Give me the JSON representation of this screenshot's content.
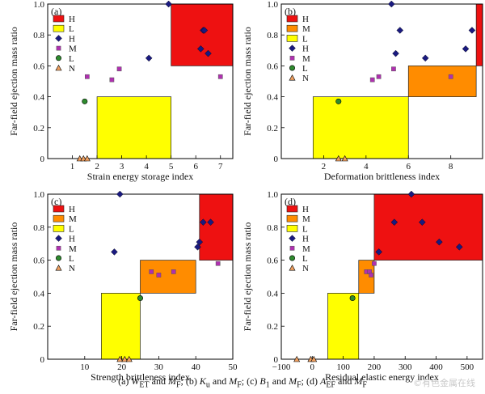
{
  "caption": "(a) Wₑₜ and Mƒ; (b) Kᵤ and Mƒ; (c) B₁ and Mƒ; (d) Aₑƒ and Mƒ",
  "caption_parts": {
    "a_prefix": "(a) ",
    "a_var": "W",
    "a_sub": "ET",
    "join1": " and ",
    "mf": "M",
    "mf_sub": "F",
    "b_prefix": "; (b) ",
    "b_var": "K",
    "b_sub": "u",
    "c_prefix": "; (c) ",
    "c_var": "B",
    "c_sub": "1",
    "d_prefix": "; (d) ",
    "d_var": "A",
    "d_sub": "EF"
  },
  "watermark": "©有色金属在线",
  "colors": {
    "high": "#ee1111",
    "medium": "#ff8c00",
    "low": "#ffff00",
    "diamond": "#1a1a80",
    "square": "#b030b0",
    "circle": "#2e8b2e",
    "triangle": "#f0a060"
  },
  "chart_data": [
    {
      "type": "scatter",
      "panel": "(a)",
      "xlabel": "Strain energy storage index",
      "ylabel": "Far-field ejection mass ratio",
      "xlim": [
        0,
        7.5
      ],
      "ylim": [
        0,
        1.0
      ],
      "xticks": [
        1,
        2,
        3,
        4,
        5,
        6,
        7
      ],
      "yticks": [
        0,
        0.2,
        0.4,
        0.6,
        0.8,
        1.0
      ],
      "legend": [
        {
          "label": "H",
          "kind": "rect-high"
        },
        {
          "label": "L",
          "kind": "rect-low"
        },
        {
          "label": "H",
          "kind": "diamond"
        },
        {
          "label": "M",
          "kind": "square"
        },
        {
          "label": "L",
          "kind": "circle"
        },
        {
          "label": "N",
          "kind": "triangle"
        }
      ],
      "regions": [
        {
          "level": "high",
          "x0": 5.0,
          "x1": 7.5,
          "y0": 0.6,
          "y1": 1.0
        },
        {
          "level": "low",
          "x0": 2.0,
          "x1": 5.0,
          "y0": 0.0,
          "y1": 0.4
        }
      ],
      "series": [
        {
          "name": "H",
          "marker": "diamond",
          "points": [
            [
              4.9,
              1.0
            ],
            [
              6.3,
              0.83
            ],
            [
              6.35,
              0.83
            ],
            [
              6.2,
              0.71
            ],
            [
              6.5,
              0.68
            ],
            [
              4.1,
              0.65
            ]
          ]
        },
        {
          "name": "M",
          "marker": "square",
          "points": [
            [
              1.6,
              0.53
            ],
            [
              2.6,
              0.51
            ],
            [
              2.9,
              0.58
            ],
            [
              7.0,
              0.53
            ]
          ]
        },
        {
          "name": "L",
          "marker": "circle",
          "points": [
            [
              1.5,
              0.37
            ]
          ]
        },
        {
          "name": "N",
          "marker": "triangle",
          "points": [
            [
              1.3,
              0.0
            ],
            [
              1.45,
              0.0
            ],
            [
              1.6,
              0.0
            ]
          ]
        }
      ]
    },
    {
      "type": "scatter",
      "panel": "(b)",
      "xlabel": "Deformation brittleness index",
      "ylabel": "Far-field ejection mass ratio",
      "xlim": [
        0,
        9.5
      ],
      "ylim": [
        0,
        1.0
      ],
      "xticks": [
        2,
        4,
        6,
        8
      ],
      "yticks": [
        0,
        0.2,
        0.4,
        0.6,
        0.8,
        1.0
      ],
      "legend": [
        {
          "label": "H",
          "kind": "rect-high"
        },
        {
          "label": "M",
          "kind": "rect-medium"
        },
        {
          "label": "L",
          "kind": "rect-low"
        },
        {
          "label": "H",
          "kind": "diamond"
        },
        {
          "label": "M",
          "kind": "square"
        },
        {
          "label": "L",
          "kind": "circle"
        },
        {
          "label": "N",
          "kind": "triangle"
        }
      ],
      "regions": [
        {
          "level": "high",
          "x0": 9.2,
          "x1": 9.5,
          "y0": 0.6,
          "y1": 1.0
        },
        {
          "level": "medium",
          "x0": 6.0,
          "x1": 9.2,
          "y0": 0.4,
          "y1": 0.6
        },
        {
          "level": "low",
          "x0": 1.5,
          "x1": 6.0,
          "y0": 0.0,
          "y1": 0.4
        }
      ],
      "series": [
        {
          "name": "H",
          "marker": "diamond",
          "points": [
            [
              5.2,
              1.0
            ],
            [
              5.6,
              0.83
            ],
            [
              9.0,
              0.83
            ],
            [
              8.7,
              0.71
            ],
            [
              5.4,
              0.68
            ],
            [
              6.8,
              0.65
            ]
          ]
        },
        {
          "name": "M",
          "marker": "square",
          "points": [
            [
              4.3,
              0.51
            ],
            [
              4.6,
              0.53
            ],
            [
              5.3,
              0.58
            ],
            [
              8.0,
              0.53
            ]
          ]
        },
        {
          "name": "L",
          "marker": "circle",
          "points": [
            [
              2.7,
              0.37
            ]
          ]
        },
        {
          "name": "N",
          "marker": "triangle",
          "points": [
            [
              2.7,
              0.0
            ],
            [
              3.0,
              0.0
            ]
          ]
        }
      ]
    },
    {
      "type": "scatter",
      "panel": "(c)",
      "xlabel": "Strength brittleness index",
      "ylabel": "Far-field ejection mass ratio",
      "xlim": [
        0,
        50
      ],
      "ylim": [
        0,
        1.0
      ],
      "xticks": [
        10,
        20,
        30,
        40,
        50
      ],
      "yticks": [
        0,
        0.2,
        0.4,
        0.6,
        0.8,
        1.0
      ],
      "legend": [
        {
          "label": "H",
          "kind": "rect-high"
        },
        {
          "label": "M",
          "kind": "rect-medium"
        },
        {
          "label": "L",
          "kind": "rect-low"
        },
        {
          "label": "H",
          "kind": "diamond"
        },
        {
          "label": "M",
          "kind": "square"
        },
        {
          "label": "L",
          "kind": "circle"
        },
        {
          "label": "N",
          "kind": "triangle"
        }
      ],
      "regions": [
        {
          "level": "high",
          "x0": 41,
          "x1": 50,
          "y0": 0.6,
          "y1": 1.0
        },
        {
          "level": "medium",
          "x0": 25,
          "x1": 40,
          "y0": 0.4,
          "y1": 0.6
        },
        {
          "level": "low",
          "x0": 14.5,
          "x1": 25,
          "y0": 0.0,
          "y1": 0.4
        }
      ],
      "series": [
        {
          "name": "H",
          "marker": "diamond",
          "points": [
            [
              19.5,
              1.0
            ],
            [
              42,
              0.83
            ],
            [
              44,
              0.83
            ],
            [
              41,
              0.71
            ],
            [
              40.5,
              0.68
            ],
            [
              18,
              0.65
            ]
          ]
        },
        {
          "name": "M",
          "marker": "square",
          "points": [
            [
              28,
              0.53
            ],
            [
              30,
              0.51
            ],
            [
              34,
              0.53
            ],
            [
              46,
              0.58
            ]
          ]
        },
        {
          "name": "L",
          "marker": "circle",
          "points": [
            [
              25,
              0.37
            ]
          ]
        },
        {
          "name": "N",
          "marker": "triangle",
          "points": [
            [
              19.5,
              0.0
            ],
            [
              20.8,
              0.0
            ],
            [
              22,
              0.0
            ]
          ]
        }
      ]
    },
    {
      "type": "scatter",
      "panel": "(d)",
      "xlabel": "Residual elastic energy index",
      "ylabel": "Far-field ejection mass ratio",
      "xlim": [
        -100,
        550
      ],
      "ylim": [
        0,
        1.0
      ],
      "xticks": [
        -100,
        0,
        100,
        200,
        300,
        400,
        500
      ],
      "yticks": [
        0,
        0.2,
        0.4,
        0.6,
        0.8,
        1.0
      ],
      "legend": [
        {
          "label": "H",
          "kind": "rect-high"
        },
        {
          "label": "M",
          "kind": "rect-medium"
        },
        {
          "label": "L",
          "kind": "rect-low"
        },
        {
          "label": "H",
          "kind": "diamond"
        },
        {
          "label": "M",
          "kind": "square"
        },
        {
          "label": "L",
          "kind": "circle"
        },
        {
          "label": "N",
          "kind": "triangle"
        }
      ],
      "regions": [
        {
          "level": "high",
          "x0": 200,
          "x1": 550,
          "y0": 0.6,
          "y1": 1.0
        },
        {
          "level": "medium",
          "x0": 150,
          "x1": 200,
          "y0": 0.4,
          "y1": 0.6
        },
        {
          "level": "low",
          "x0": 50,
          "x1": 150,
          "y0": 0.0,
          "y1": 0.4
        }
      ],
      "series": [
        {
          "name": "H",
          "marker": "diamond",
          "points": [
            [
              320,
              1.0
            ],
            [
              265,
              0.83
            ],
            [
              355,
              0.83
            ],
            [
              410,
              0.71
            ],
            [
              475,
              0.68
            ],
            [
              215,
              0.65
            ]
          ]
        },
        {
          "name": "M",
          "marker": "square",
          "points": [
            [
              175,
              0.53
            ],
            [
              185,
              0.53
            ],
            [
              190,
              0.51
            ],
            [
              200,
              0.58
            ]
          ]
        },
        {
          "name": "L",
          "marker": "circle",
          "points": [
            [
              130,
              0.37
            ]
          ]
        },
        {
          "name": "N",
          "marker": "triangle",
          "points": [
            [
              -50,
              0.0
            ],
            [
              -5,
              0.0
            ],
            [
              5,
              0.0
            ]
          ]
        }
      ]
    }
  ]
}
